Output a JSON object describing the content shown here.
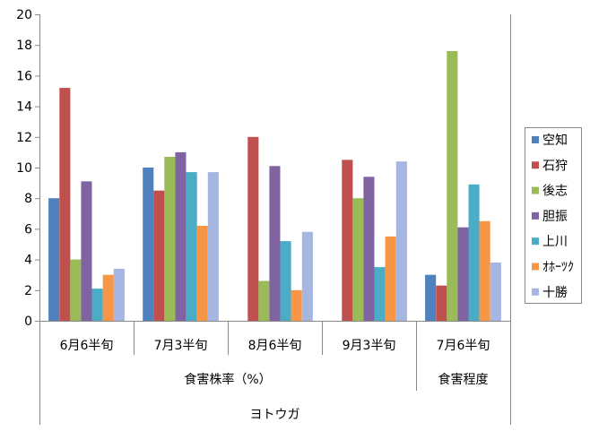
{
  "chart_data": {
    "type": "bar",
    "categories": [
      "6月6半旬",
      "7月3半旬",
      "8月6半旬",
      "9月3半旬",
      "7月6半旬"
    ],
    "groups": [
      {
        "label": "食害株率（%）",
        "categories": [
          "6月6半旬",
          "7月3半旬",
          "8月6半旬",
          "9月3半旬"
        ]
      },
      {
        "label": "食害程度",
        "categories": [
          "7月6半旬"
        ]
      }
    ],
    "top_group": "ヨトウガ",
    "ylim": [
      0,
      20
    ],
    "yticks": [
      "0",
      "2",
      "4",
      "6",
      "8",
      "10",
      "12",
      "14",
      "16",
      "18",
      "20"
    ],
    "grid": false,
    "legend": "right",
    "series": [
      {
        "name": "空知",
        "color": "#4f81bd",
        "values": [
          8.0,
          10.0,
          null,
          null,
          3.0
        ]
      },
      {
        "name": "石狩",
        "color": "#c0504d",
        "values": [
          15.2,
          8.5,
          12.0,
          10.5,
          2.3
        ]
      },
      {
        "name": "後志",
        "color": "#9bbb59",
        "values": [
          4.0,
          10.7,
          2.6,
          8.0,
          17.6
        ]
      },
      {
        "name": "胆振",
        "color": "#8064a2",
        "values": [
          9.1,
          11.0,
          10.1,
          9.4,
          6.1
        ]
      },
      {
        "name": "上川",
        "color": "#4bacc6",
        "values": [
          2.1,
          9.7,
          5.2,
          3.5,
          8.9
        ]
      },
      {
        "name": "ｵﾎｰﾂｸ",
        "color": "#f79646",
        "values": [
          3.0,
          6.2,
          2.0,
          5.5,
          6.5
        ]
      },
      {
        "name": "十勝",
        "color": "#a5b6e0",
        "values": [
          3.4,
          9.7,
          5.8,
          10.4,
          3.8
        ]
      }
    ]
  }
}
